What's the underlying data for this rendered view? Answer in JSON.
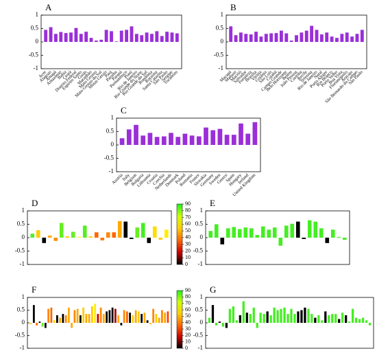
{
  "chart_data": [
    {
      "type": "bar",
      "label": "A",
      "color": "#9a2fd8",
      "ylim": [
        -1,
        1
      ],
      "yticks": [
        -1,
        -0.5,
        0,
        0.5,
        1
      ],
      "categories": [
        "Acre",
        "Alagoas",
        "Amapá",
        "Amazonas",
        "Bahia",
        "Ceará",
        "Distrito Federal",
        "Espírito Santo",
        "Goiás",
        "Maranhão",
        "Mato Grosso",
        "Mato Grosso do Sul",
        "Minas Gerais",
        "Pará",
        "Paraíba",
        "Paraná",
        "Pernambuco",
        "Piauí",
        "Rio de Janeiro",
        "Rio Grande do Norte",
        "Rio Grande do Sul",
        "Rondônia",
        "Roraima",
        "Santa Catarina",
        "São Paulo",
        "Sergipe",
        "Tocantins"
      ],
      "values": [
        0.45,
        0.55,
        0.3,
        0.37,
        0.33,
        0.35,
        0.52,
        0.3,
        0.38,
        0.15,
        0.05,
        0.08,
        0.45,
        0.4,
        0.02,
        0.42,
        0.45,
        0.58,
        0.3,
        0.25,
        0.35,
        0.3,
        0.4,
        0.22,
        0.38,
        0.35,
        0.32
      ]
    },
    {
      "type": "bar",
      "label": "B",
      "color": "#9a2fd8",
      "ylim": [
        -1,
        1
      ],
      "yticks": [
        -1,
        -0.5,
        0,
        0.5,
        1
      ],
      "categories": [
        "Macapá",
        "Manaus",
        "Maceió",
        "Salvador",
        "Fortaleza",
        "Brasília",
        "Vitória",
        "Goiânia",
        "São Luís",
        "Cuiabá",
        "Campo Grande",
        "Belo Horizonte",
        "Belém",
        "João Pessoa",
        "Curitiba",
        "Recife",
        "Teresina",
        "Rio de Janeiro",
        "Natal",
        "Porto Alegre",
        "Rio Branco",
        "Porto Velho",
        "Boa Vista",
        "Florianópolis",
        "Aracaju",
        "São Bernardo do Campo",
        "São Paulo"
      ],
      "values": [
        0.58,
        0.25,
        0.35,
        0.3,
        0.28,
        0.38,
        0.2,
        0.3,
        0.32,
        0.33,
        0.42,
        0.32,
        0.05,
        0.25,
        0.35,
        0.42,
        0.6,
        0.45,
        0.28,
        0.35,
        0.2,
        0.15,
        0.3,
        0.35,
        0.2,
        0.3,
        0.45
      ]
    },
    {
      "type": "bar",
      "label": "C",
      "color": "#9a2fd8",
      "ylim": [
        -1,
        1
      ],
      "yticks": [
        -1,
        -0.5,
        0,
        0.5,
        1
      ],
      "categories": [
        "Austria",
        "Italy",
        "Belgium",
        "Bulgaria",
        "Lithuania",
        "Croatia",
        "Czechia",
        "Netherlands",
        "Denmark",
        "Poland",
        "Romania",
        "France",
        "Slovakia",
        "Germany",
        "Sweden",
        "Greece",
        "Spain",
        "Hungary",
        "Ireland",
        "United Kingdom"
      ],
      "values": [
        0.25,
        0.58,
        0.75,
        0.35,
        0.45,
        0.3,
        0.32,
        0.45,
        0.3,
        0.42,
        0.35,
        0.32,
        0.65,
        0.55,
        0.6,
        0.38,
        0.38,
        0.8,
        0.42,
        0.85
      ]
    },
    {
      "type": "bar",
      "label": "D",
      "ylim": [
        -1,
        1
      ],
      "yticks": [
        -1,
        -0.5,
        0,
        0.5,
        1
      ],
      "categories": [
        null,
        null,
        null,
        null,
        null,
        null,
        null,
        null,
        null,
        null,
        null,
        null,
        null,
        null,
        null,
        null,
        null,
        null,
        null,
        null,
        null,
        null,
        null,
        null
      ],
      "values": [
        0.15,
        0.28,
        -0.2,
        0.08,
        -0.12,
        0.55,
        0.05,
        0.22,
        0.03,
        0.45,
        0.05,
        0.2,
        -0.1,
        0.2,
        0.2,
        0.62,
        0.6,
        -0.05,
        0.38,
        0.55,
        -0.2,
        0.42,
        -0.08,
        0.3
      ],
      "colors": [
        "#4cf02c",
        "#ffcc00",
        "#000000",
        "#ffaa00",
        "#ff8c00",
        "#66ee22",
        "#ffcc00",
        "#66ee22",
        "#ffee00",
        "#55ee22",
        "#ffcc00",
        "#ff6600",
        "#ff7700",
        "#ff8800",
        "#ff6600",
        "#ffaa00",
        "#000000",
        "#000000",
        "#66ee22",
        "#44ee22",
        "#000000",
        "#ffdd00",
        "#ffcc00",
        "#ffee00"
      ],
      "colorbar": {
        "ticks": [
          0,
          10,
          20,
          30,
          40,
          50,
          60,
          70,
          80,
          90
        ],
        "lim": [
          0,
          90
        ],
        "colors": [
          "#000000",
          "#cc0000",
          "#ff6600",
          "#ffcc00",
          "#ccff00",
          "#22ee22"
        ]
      }
    },
    {
      "type": "bar",
      "label": "E",
      "color": "#44ee22",
      "ylim": [
        -1,
        1
      ],
      "yticks": [
        -1,
        -0.5,
        0,
        0.5,
        1
      ],
      "categories": [
        null,
        null,
        null,
        null,
        null,
        null,
        null,
        null,
        null,
        null,
        null,
        null,
        null,
        null,
        null,
        null,
        null,
        null,
        null,
        null,
        null,
        null,
        null,
        null
      ],
      "values": [
        0.25,
        0.5,
        -0.25,
        0.35,
        0.4,
        0.32,
        0.38,
        0.35,
        0.1,
        0.42,
        0.3,
        0.38,
        -0.3,
        0.45,
        0.52,
        0.6,
        -0.05,
        0.65,
        0.6,
        0.35,
        -0.2,
        0.3,
        0.03,
        -0.08
      ],
      "colors": [
        "#44ee22",
        "#44ee22",
        "#000000",
        "#44ee22",
        "#44ee22",
        "#44ee22",
        "#44ee22",
        "#44ee22",
        "#44ee22",
        "#44ee22",
        "#44ee22",
        "#44ee22",
        "#44ee22",
        "#44ee22",
        "#44ee22",
        "#000000",
        "#000000",
        "#44ee22",
        "#44ee22",
        "#44ee22",
        "#000000",
        "#44ee22",
        "#44ee22",
        "#44ee22"
      ]
    },
    {
      "type": "bar",
      "label": "F",
      "ylim": [
        -1,
        1
      ],
      "yticks": [
        -1,
        -0.5,
        0,
        0.5,
        1
      ],
      "categories": [
        null,
        null,
        null,
        null,
        null,
        null,
        null,
        null,
        null,
        null,
        null,
        null,
        null,
        null,
        null,
        null,
        null,
        null,
        null,
        null,
        null,
        null,
        null,
        null,
        null,
        null,
        null,
        null,
        null,
        null,
        null,
        null,
        null,
        null,
        null,
        null,
        null,
        null,
        null,
        null,
        null,
        null,
        null,
        null,
        null,
        null,
        null,
        null
      ],
      "values": [
        -0.05,
        0.7,
        -0.1,
        0.05,
        -0.15,
        -0.2,
        0.55,
        0.6,
        0.1,
        0.3,
        0.2,
        0.35,
        0.3,
        0.6,
        -0.2,
        0.5,
        0.55,
        0.3,
        0.6,
        0.35,
        0.35,
        0.65,
        0.75,
        0.35,
        0.6,
        0.35,
        0.45,
        0.5,
        0.6,
        0.55,
        0.3,
        -0.1,
        0.5,
        0.45,
        0.4,
        0.3,
        0.5,
        0.45,
        0.35,
        0.4,
        0.1,
        -0.05,
        0.55,
        0.35,
        0.2,
        0.5,
        0.4,
        0.45
      ],
      "colors": [
        "#ffcc00",
        "#000000",
        "#ff6600",
        "#000000",
        "#66ee22",
        "#000000",
        "#ff8800",
        "#ff6600",
        "#ffcc00",
        "#000000",
        "#ffaa00",
        "#000000",
        "#ff8800",
        "#ffaa00",
        "#ffaa00",
        "#ff8800",
        "#ffaa00",
        "#000000",
        "#ffcc00",
        "#ffaa00",
        "#ffaa00",
        "#ffcc00",
        "#ffee00",
        "#cc0000",
        "#ff8800",
        "#ffaa00",
        "#000000",
        "#000000",
        "#000000",
        "#aa0000",
        "#ffaa00",
        "#000000",
        "#ff8800",
        "#ff6600",
        "#000000",
        "#ffcc00",
        "#ffaa00",
        "#ffcc00",
        "#000000",
        "#ffaa00",
        "#000000",
        "#ffaa00",
        "#ff8800",
        "#ffcc00",
        "#ffaa00",
        "#ff8800",
        "#ffaa00",
        "#ff4400"
      ],
      "colorbar": {
        "ticks": [
          0,
          10,
          20,
          30,
          40,
          50,
          60,
          70,
          80,
          90
        ],
        "lim": [
          0,
          90
        ],
        "colors": [
          "#000000",
          "#cc0000",
          "#ff6600",
          "#ffcc00",
          "#ccff00",
          "#22ee22"
        ]
      }
    },
    {
      "type": "bar",
      "label": "G",
      "ylim": [
        -1,
        1
      ],
      "yticks": [
        -1,
        -0.5,
        0,
        0.5,
        1
      ],
      "categories": [
        null,
        null,
        null,
        null,
        null,
        null,
        null,
        null,
        null,
        null,
        null,
        null,
        null,
        null,
        null,
        null,
        null,
        null,
        null,
        null,
        null,
        null,
        null,
        null,
        null,
        null,
        null,
        null,
        null,
        null,
        null,
        null,
        null,
        null,
        null,
        null,
        null,
        null,
        null,
        null,
        null,
        null,
        null,
        null,
        null,
        null,
        null,
        null
      ],
      "values": [
        0.2,
        0.7,
        -0.1,
        0.05,
        -0.15,
        -0.2,
        0.55,
        0.65,
        0.1,
        0.3,
        0.85,
        0.4,
        0.35,
        0.6,
        -0.2,
        0.4,
        0.35,
        0.45,
        0.3,
        0.6,
        0.5,
        0.55,
        0.6,
        0.35,
        0.55,
        0.35,
        0.45,
        0.5,
        0.6,
        0.55,
        0.35,
        0.2,
        0.3,
        0.1,
        0.45,
        0.3,
        0.35,
        0.35,
        0.15,
        0.4,
        0.3,
        0.05,
        0.55,
        0.2,
        0.15,
        0.2,
        0.1,
        -0.1
      ],
      "colors": [
        "#44ee22",
        "#000000",
        "#44ee22",
        "#000000",
        "#44ee22",
        "#000000",
        "#44ee22",
        "#44ee22",
        "#44ee22",
        "#000000",
        "#44ee22",
        "#000000",
        "#44ee22",
        "#44ee22",
        "#44ee22",
        "#44ee22",
        "#44ee22",
        "#000000",
        "#44ee22",
        "#44ee22",
        "#44ee22",
        "#44ee22",
        "#44ee22",
        "#44ee22",
        "#44ee22",
        "#44ee22",
        "#000000",
        "#000000",
        "#000000",
        "#44ee22",
        "#44ee22",
        "#000000",
        "#44ee22",
        "#44ee22",
        "#000000",
        "#44ee22",
        "#44ee22",
        "#44ee22",
        "#000000",
        "#44ee22",
        "#000000",
        "#44ee22",
        "#44ee22",
        "#44ee22",
        "#44ee22",
        "#44ee22",
        "#44ee22",
        "#44ee22"
      ]
    }
  ]
}
